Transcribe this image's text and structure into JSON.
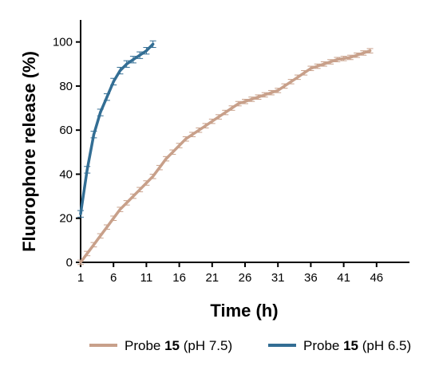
{
  "chart_data": {
    "type": "line",
    "xlabel": "Time (h)",
    "ylabel": "Fluorophore release (%)",
    "xlim": [
      1,
      51
    ],
    "ylim": [
      0,
      110
    ],
    "xticks": [
      1,
      6,
      11,
      16,
      21,
      26,
      31,
      36,
      41,
      46
    ],
    "yticks": [
      0,
      20,
      40,
      60,
      80,
      100
    ],
    "grid": false,
    "legend_position": "bottom",
    "error_bars": true,
    "series": [
      {
        "name": "Probe 15 (pH 7.5)",
        "name_prefix": "Probe ",
        "name_number": "15",
        "name_suffix": " (pH 7.5)",
        "color": "#c8a08a",
        "x": [
          1,
          2,
          3,
          4,
          5,
          6,
          7,
          8,
          9,
          10,
          11,
          12,
          13,
          14,
          15,
          16,
          17,
          18,
          19,
          20,
          21,
          22,
          23,
          24,
          25,
          26,
          27,
          28,
          29,
          30,
          31,
          32,
          33,
          34,
          35,
          36,
          37,
          38,
          39,
          40,
          41,
          42,
          43,
          44,
          45
        ],
        "y": [
          0,
          4,
          8,
          12,
          16,
          20,
          24,
          27,
          30,
          33,
          36,
          39,
          43,
          47,
          50,
          53,
          56,
          58,
          60,
          62,
          64,
          66,
          68,
          70,
          72,
          73,
          74,
          75,
          76,
          77,
          78,
          80,
          82,
          84,
          86,
          88,
          89,
          90,
          91,
          92,
          92.5,
          93,
          94,
          95,
          96
        ],
        "error": 1
      },
      {
        "name": "Probe 15 (pH 6.5)",
        "name_prefix": "Probe ",
        "name_number": "15",
        "name_suffix": " (pH 6.5)",
        "color": "#336e94",
        "x": [
          1,
          2,
          3,
          4,
          5,
          6,
          7,
          8,
          9,
          10,
          11,
          12
        ],
        "y": [
          22,
          42,
          58,
          68,
          75,
          82,
          87,
          90,
          92,
          94,
          96,
          99
        ],
        "error": 1.5
      }
    ]
  }
}
